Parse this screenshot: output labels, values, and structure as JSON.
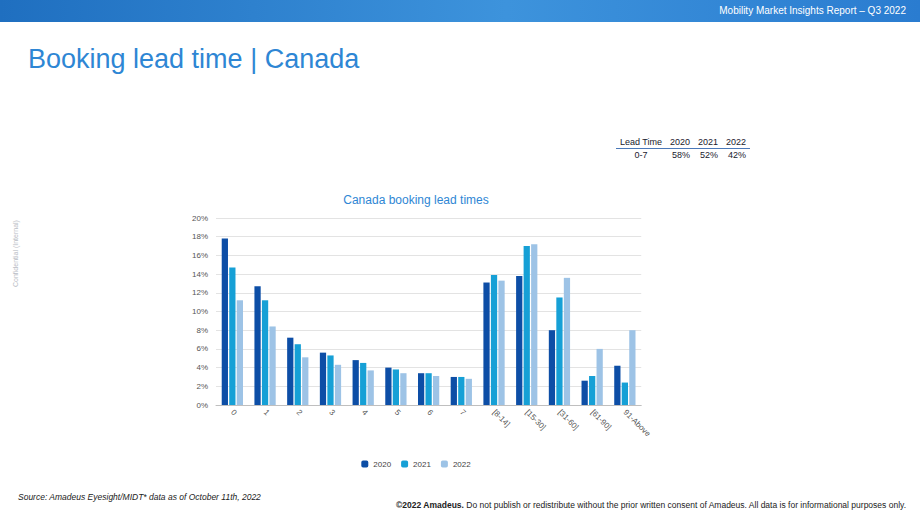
{
  "header": "Mobility Market Insights Report – Q3 2022",
  "title": "Booking lead time | Canada",
  "side_text": "Confidential (Internal)",
  "table": {
    "header": [
      "Lead Time",
      "2020",
      "2021",
      "2022"
    ],
    "rows": [
      [
        "0-7",
        "58%",
        "52%",
        "42%"
      ]
    ]
  },
  "chart_data": {
    "type": "bar",
    "title": "Canada booking lead times",
    "categories": [
      "0",
      "1",
      "2",
      "3",
      "4",
      "5",
      "6",
      "7",
      "[8-14]",
      "[15-30]",
      "[31-60]",
      "[61-90]",
      "91-Above"
    ],
    "series": [
      {
        "name": "2020",
        "color": "#0d4ea6",
        "values": [
          17.8,
          12.7,
          7.2,
          5.6,
          4.8,
          4.0,
          3.4,
          3.0,
          13.1,
          13.8,
          8.0,
          2.6,
          4.2
        ]
      },
      {
        "name": "2021",
        "color": "#16a0d6",
        "values": [
          14.7,
          11.2,
          6.5,
          5.3,
          4.5,
          3.8,
          3.4,
          3.0,
          13.9,
          17.0,
          11.5,
          3.1,
          2.4
        ]
      },
      {
        "name": "2022",
        "color": "#9dc3e6",
        "values": [
          11.2,
          8.4,
          5.1,
          4.3,
          3.7,
          3.4,
          3.1,
          2.8,
          13.3,
          17.2,
          13.6,
          6.0,
          8.0
        ]
      }
    ],
    "ylim": [
      0,
      20
    ],
    "yticks": [
      {
        "value": 0,
        "label": "0%"
      },
      {
        "value": 2,
        "label": "2%"
      },
      {
        "value": 4,
        "label": "4%"
      },
      {
        "value": 6,
        "label": "6%"
      },
      {
        "value": 8,
        "label": "8%"
      },
      {
        "value": 10,
        "label": "10%"
      },
      {
        "value": 12,
        "label": "12%"
      },
      {
        "value": 14,
        "label": "14%"
      },
      {
        "value": 16,
        "label": "16%"
      },
      {
        "value": 18,
        "label": "18%"
      },
      {
        "value": 20,
        "label": "20%"
      }
    ],
    "grid": true,
    "legend": "bottom"
  },
  "source": "Source: Amadeus Eyesight/MIDT* data as of  October 11th, 2022",
  "copyright": {
    "bold": "©2022 Amadeus.",
    "text": " Do not publish or redistribute without the prior written consent of Amadeus. All data is for informational purposes only."
  }
}
